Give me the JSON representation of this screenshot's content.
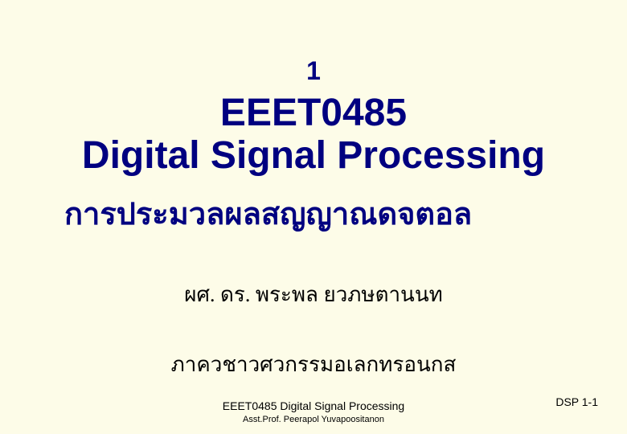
{
  "slide": {
    "background_color": "#fdfce8",
    "heading_color": "#000080",
    "body_color": "#000000",
    "chapter_number": "1",
    "course_code": "EEET0485",
    "course_title_en": "Digital Signal Processing",
    "course_title_th": "การประมวลผลสญญาณดจตอล",
    "instructor": "ผศ. ดร. พระพล   ยวภษตานนท",
    "department": "ภาควชาวศวกรรมอเลกทรอนกส",
    "chapter_fontsize": 32,
    "title_fontsize": 48,
    "thai_title_fontsize": 38,
    "body_fontsize": 26
  },
  "footer": {
    "course": "EEET0485 Digital Signal Processing",
    "author": "Asst.Prof. Peerapol Yuvapoositanon",
    "page_label": "DSP 1-1",
    "course_fontsize": 14,
    "author_fontsize": 11,
    "page_fontsize": 14
  }
}
